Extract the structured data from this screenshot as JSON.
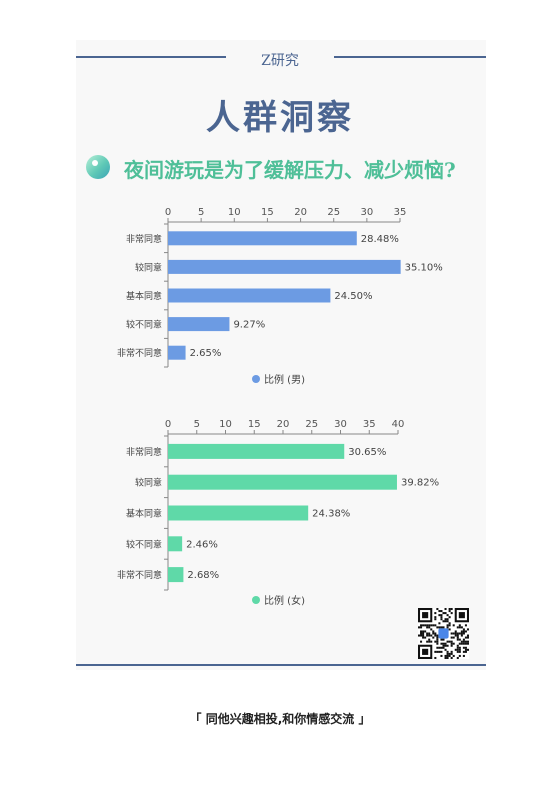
{
  "header": {
    "brand": "Z研究",
    "title": "人群洞察"
  },
  "question": "夜间游玩是为了缓解压力、减少烦恼?",
  "footer": "「 同他兴趣相投,和你情感交流 」",
  "colors": {
    "accent": "#4b6591",
    "male": "#6c9be3",
    "female": "#5fd9a8",
    "question": "#4fbf98"
  },
  "chart_data": [
    {
      "type": "bar",
      "orientation": "horizontal",
      "categories": [
        "非常同意",
        "较同意",
        "基本同意",
        "较不同意",
        "非常不同意"
      ],
      "series": [
        {
          "name": "比例 (男)",
          "values": [
            28.48,
            35.1,
            24.5,
            9.27,
            2.65
          ]
        }
      ],
      "value_labels": [
        "28.48%",
        "35.10%",
        "24.50%",
        "9.27%",
        "2.65%"
      ],
      "xlim": [
        0,
        35
      ],
      "xticks": [
        0,
        5,
        10,
        15,
        20,
        25,
        30,
        35
      ],
      "legend": "bottom"
    },
    {
      "type": "bar",
      "orientation": "horizontal",
      "categories": [
        "非常同意",
        "较同意",
        "基本同意",
        "较不同意",
        "非常不同意"
      ],
      "series": [
        {
          "name": "比例 (女)",
          "values": [
            30.65,
            39.82,
            24.38,
            2.46,
            2.68
          ]
        }
      ],
      "value_labels": [
        "30.65%",
        "39.82%",
        "24.38%",
        "2.46%",
        "2.68%"
      ],
      "xlim": [
        0,
        40
      ],
      "xticks": [
        0,
        5,
        10,
        15,
        20,
        25,
        30,
        35,
        40
      ],
      "legend": "bottom"
    }
  ]
}
